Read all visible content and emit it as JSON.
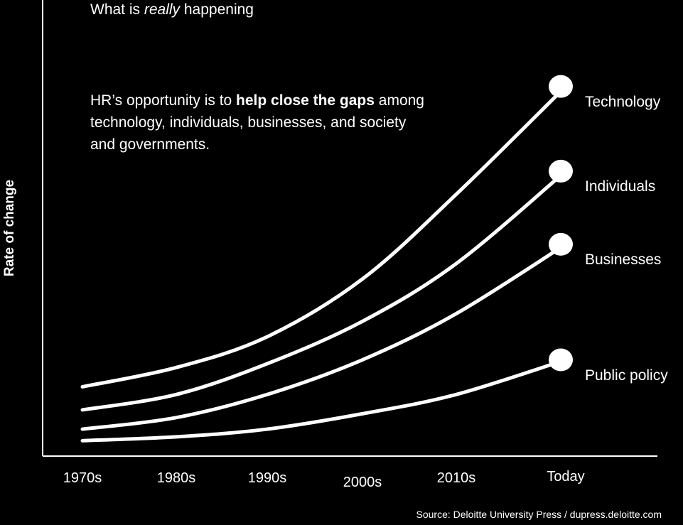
{
  "title_prefix": "What is ",
  "title_emph": "really",
  "title_suffix": " happening",
  "note": {
    "prefix": "HR’s opportunity is to ",
    "bold": "help close the gaps",
    "suffix": " among technology, individuals, businesses, and society and governments."
  },
  "source": "Source: Deloitte University Press / dupress.deloitte.com",
  "chart_data": {
    "type": "line",
    "ylabel": "Rate of change",
    "xlabel": "",
    "categories": [
      "1970s",
      "1980s",
      "1990s",
      "2000s",
      "2010s",
      "Today"
    ],
    "ylim": [
      0,
      100
    ],
    "grid": false,
    "legend": "end-of-line labels",
    "series": [
      {
        "name": "Technology",
        "values": [
          18,
          23,
          31,
          46,
          68,
          96
        ],
        "color": "#ffffff"
      },
      {
        "name": "Individuals",
        "values": [
          12,
          16,
          24,
          35,
          50,
          74
        ],
        "color": "#ffffff"
      },
      {
        "name": "Businesses",
        "values": [
          7,
          10,
          16,
          25,
          37,
          55
        ],
        "color": "#ffffff"
      },
      {
        "name": "Public policy",
        "values": [
          4,
          5,
          7,
          11,
          16,
          25
        ],
        "color": "#ffffff"
      }
    ]
  }
}
